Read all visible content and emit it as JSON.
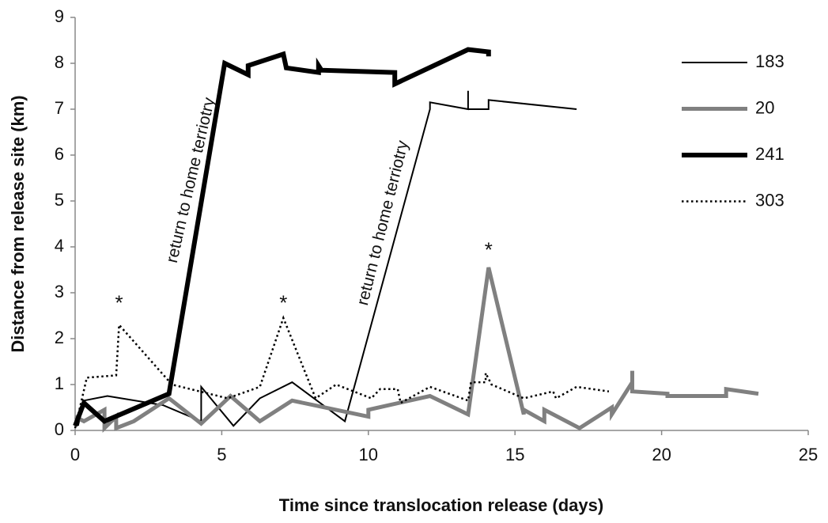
{
  "chart_data": {
    "type": "line",
    "xlabel": "Time since translocation release (days)",
    "ylabel": "Distance from release site (km)",
    "xlim": [
      0,
      25
    ],
    "xticks": [
      0,
      5,
      10,
      15,
      20,
      25
    ],
    "ylim": [
      0,
      9
    ],
    "yticks": [
      0,
      1,
      2,
      3,
      4,
      5,
      6,
      7,
      8,
      9
    ],
    "grid": false,
    "legend": "upper right",
    "series": [
      {
        "name": "183",
        "color": "#000000",
        "width": 2,
        "style": "solid",
        "x": [
          0.1,
          0.3,
          1.1,
          3.0,
          4.3,
          4.3,
          5.4,
          6.3,
          7.4,
          9.2,
          12.1,
          12.1,
          13.4,
          13.4,
          13.4,
          14.1,
          14.1,
          17.1
        ],
        "values": [
          0.1,
          0.65,
          0.75,
          0.55,
          0.2,
          0.95,
          0.1,
          0.7,
          1.05,
          0.2,
          7.0,
          7.15,
          7.0,
          7.4,
          7.0,
          7.0,
          7.2,
          7.0
        ]
      },
      {
        "name": "20",
        "color": "#808080",
        "width": 5,
        "style": "solid",
        "x": [
          0,
          0.3,
          1.0,
          1.0,
          1.4,
          1.4,
          2.0,
          3.2,
          4.3,
          5.3,
          6.3,
          7.4,
          10.0,
          10.0,
          12.1,
          13.4,
          14.1,
          15.3,
          15.3,
          16.0,
          16.0,
          17.2,
          18.3,
          18.3,
          19.0,
          19.0,
          19.0,
          20.2,
          20.2,
          22.2,
          22.2,
          23.3
        ],
        "values": [
          0.3,
          0.2,
          0.45,
          0.05,
          0.3,
          0.05,
          0.2,
          0.7,
          0.15,
          0.75,
          0.2,
          0.65,
          0.3,
          0.45,
          0.75,
          0.35,
          3.55,
          0.35,
          0.45,
          0.2,
          0.45,
          0.05,
          0.5,
          0.35,
          1.05,
          1.3,
          0.85,
          0.8,
          0.75,
          0.75,
          0.9,
          0.8
        ]
      },
      {
        "name": "241",
        "color": "#000000",
        "width": 6,
        "style": "solid",
        "x": [
          0,
          0.3,
          1.0,
          3.2,
          5.1,
          5.9,
          5.9,
          7.1,
          7.2,
          8.3,
          8.3,
          8.4,
          10.9,
          10.9,
          13.4,
          14.1,
          14.1
        ],
        "values": [
          0.1,
          0.6,
          0.2,
          0.8,
          8.0,
          7.75,
          7.95,
          8.2,
          7.9,
          7.8,
          7.95,
          7.85,
          7.8,
          7.55,
          8.3,
          8.25,
          8.15
        ]
      },
      {
        "name": "303",
        "color": "#000000",
        "width": 2.5,
        "style": "dotted",
        "x": [
          0,
          0.4,
          1.4,
          1.5,
          3.3,
          5.2,
          6.3,
          7.1,
          8.2,
          8.9,
          10.1,
          10.4,
          11.0,
          11.1,
          12.1,
          13.4,
          13.5,
          14.0,
          14.0,
          14.2,
          15.3,
          16.3,
          16.4,
          17.1,
          18.2
        ],
        "values": [
          0.05,
          1.15,
          1.2,
          2.3,
          1.0,
          0.7,
          0.95,
          2.45,
          0.7,
          1.0,
          0.7,
          0.9,
          0.9,
          0.6,
          0.95,
          0.65,
          1.05,
          1.05,
          1.25,
          1.0,
          0.7,
          0.85,
          0.7,
          0.95,
          0.85
        ]
      }
    ],
    "annotations": [
      "*",
      "*",
      "*",
      "return to home terriotry",
      "return to home terriotry"
    ]
  }
}
